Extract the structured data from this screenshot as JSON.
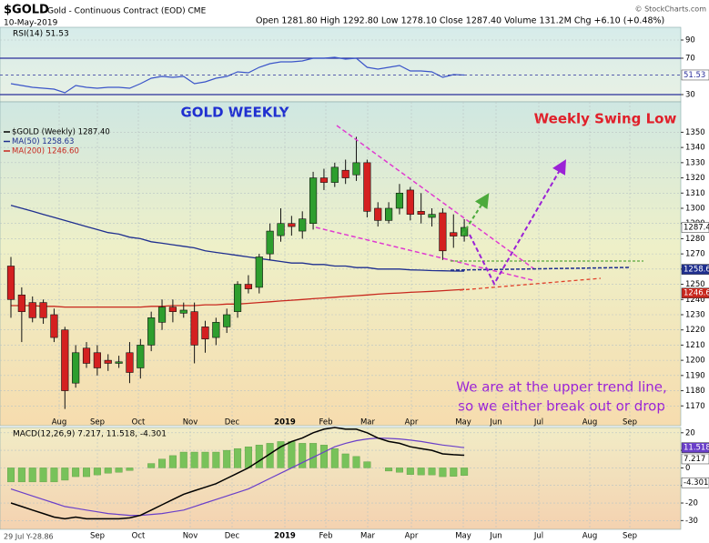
{
  "header": {
    "symbol": "$GOLD",
    "name": "Gold - Continuous Contract (EOD) CME",
    "date": "10-May-2019",
    "source": "© StockCharts.com",
    "quote": "Open 1281.80  High 1292.80  Low 1278.10  Close 1287.40  Volume 131.2M  Chg +6.10 (+0.48%)"
  },
  "annotations": {
    "left": "GOLD WEEKLY",
    "right": "Weekly Swing Low",
    "note_line1": "We are at the upper trend line,",
    "note_line2": "so we either break out or drop"
  },
  "footer": "29 Jul Y-28.86",
  "chart_data": [
    {
      "type": "line",
      "label": "RSI(14) 51.53",
      "series": [
        {
          "name": "RSI(14)",
          "color": "#3b55c9",
          "values": [
            42,
            40,
            38,
            37,
            36,
            32,
            40,
            38,
            37,
            38,
            38,
            37,
            42,
            48,
            50,
            49,
            50,
            42,
            44,
            48,
            50,
            55,
            54,
            60,
            64,
            66,
            66,
            67,
            70,
            70,
            71,
            69,
            70,
            60,
            58,
            60,
            62,
            56,
            56,
            55,
            49,
            52,
            51.53
          ]
        }
      ],
      "overbought": 70,
      "oversold": 30,
      "ylim": [
        22,
        104
      ],
      "yticks": [
        30,
        70,
        90
      ]
    },
    {
      "type": "candlestick",
      "legend": [
        "$GOLD (Weekly) 1287.40",
        "MA(50) 1258.63",
        "MA(200) 1246.60"
      ],
      "up_color": "#2e9e2e",
      "down_color": "#d42020",
      "open": [
        1262,
        1243,
        1238,
        1238,
        1230,
        1220,
        1185,
        1208,
        1205,
        1200,
        1198,
        1205,
        1195,
        1210,
        1225,
        1235,
        1231,
        1232,
        1222,
        1215,
        1222,
        1232,
        1250,
        1248,
        1270,
        1282,
        1290,
        1285,
        1290,
        1320,
        1317,
        1325,
        1322,
        1330,
        1300,
        1292,
        1300,
        1312,
        1298,
        1294,
        1297,
        1284,
        1281.8
      ],
      "high": [
        1268,
        1248,
        1242,
        1240,
        1234,
        1222,
        1210,
        1212,
        1210,
        1204,
        1203,
        1212,
        1214,
        1232,
        1240,
        1240,
        1238,
        1238,
        1226,
        1228,
        1234,
        1252,
        1256,
        1270,
        1290,
        1300,
        1295,
        1298,
        1324,
        1326,
        1330,
        1332,
        1347,
        1332,
        1304,
        1304,
        1316,
        1314,
        1310,
        1300,
        1300,
        1296,
        1292.8
      ],
      "low": [
        1228,
        1212,
        1225,
        1224,
        1212,
        1168,
        1182,
        1195,
        1190,
        1193,
        1195,
        1185,
        1188,
        1206,
        1220,
        1225,
        1228,
        1198,
        1205,
        1210,
        1218,
        1228,
        1244,
        1244,
        1266,
        1278,
        1282,
        1280,
        1286,
        1312,
        1314,
        1316,
        1318,
        1294,
        1288,
        1290,
        1296,
        1292,
        1290,
        1288,
        1266,
        1274,
        1278.1
      ],
      "close": [
        1240,
        1232,
        1228,
        1228,
        1215,
        1180,
        1205,
        1198,
        1195,
        1198,
        1199,
        1192,
        1210,
        1228,
        1235,
        1232,
        1233,
        1210,
        1214,
        1225,
        1230,
        1250,
        1247,
        1268,
        1285,
        1290,
        1288,
        1293,
        1320,
        1317,
        1327,
        1320,
        1330,
        1298,
        1292,
        1300,
        1310,
        1296,
        1296,
        1296,
        1272,
        1281.7,
        1287.4
      ],
      "overlays": [
        {
          "name": "MA(50)",
          "color": "#1f2f8f",
          "values": [
            1302,
            1300,
            1298,
            1296,
            1294,
            1292,
            1290,
            1288,
            1286,
            1284,
            1283,
            1281,
            1280,
            1278,
            1277,
            1276,
            1275,
            1274,
            1272,
            1271,
            1270,
            1269,
            1268,
            1267,
            1266,
            1265,
            1264,
            1264,
            1263,
            1263,
            1262,
            1262,
            1261,
            1261,
            1260,
            1260,
            1260,
            1259.5,
            1259.3,
            1259,
            1258.9,
            1258.7,
            1258.63
          ]
        },
        {
          "name": "MA(200)",
          "color": "#c8281e",
          "values": [
            1236,
            1236,
            1236,
            1235.5,
            1235.5,
            1235,
            1235,
            1235,
            1235,
            1235,
            1235,
            1235,
            1235,
            1235.5,
            1235.5,
            1236,
            1236,
            1236,
            1236.5,
            1236.5,
            1237,
            1237,
            1237.5,
            1238,
            1238.5,
            1239,
            1239.5,
            1240,
            1240.5,
            1241,
            1241.5,
            1242,
            1242.5,
            1243,
            1243.5,
            1244,
            1244.3,
            1244.7,
            1245,
            1245.4,
            1245.8,
            1246.2,
            1246.6
          ]
        }
      ],
      "ylim": [
        1157,
        1370
      ],
      "yticks": [
        1170,
        1180,
        1190,
        1200,
        1210,
        1220,
        1230,
        1240,
        1250,
        1260,
        1270,
        1280,
        1290,
        1300,
        1310,
        1320,
        1330,
        1340,
        1350
      ],
      "x_axis_labels": [
        "Aug",
        "Sep",
        "Oct",
        "Nov",
        "Dec",
        "2019",
        "Feb",
        "Mar",
        "Apr",
        "May",
        "Jun",
        "Jul",
        "Aug",
        "Sep"
      ],
      "grid": true
    },
    {
      "type": "macd",
      "label": "MACD(12,26,9) 7.217, 11.518, -4.301",
      "macd": [
        -20,
        -22,
        -24,
        -26,
        -28,
        -29,
        -28,
        -29,
        -29,
        -29,
        -29,
        -28.5,
        -27,
        -24,
        -21,
        -18,
        -15,
        -13,
        -11,
        -9,
        -6,
        -3,
        0,
        4,
        8,
        12,
        15,
        17,
        20,
        22,
        23,
        22,
        22,
        20,
        17,
        15,
        14,
        12,
        11,
        10,
        8,
        7.5,
        7.217
      ],
      "signal": [
        -12,
        -14,
        -16,
        -18,
        -20,
        -22,
        -23,
        -24,
        -25,
        -26,
        -26.5,
        -27,
        -27,
        -26.5,
        -26,
        -25,
        -24,
        -22,
        -20,
        -18,
        -16,
        -14,
        -12,
        -9,
        -6,
        -3,
        0,
        3,
        6,
        9,
        12,
        14,
        15.5,
        16.5,
        17,
        16.8,
        16.5,
        15.8,
        15,
        14,
        13,
        12.3,
        11.518
      ],
      "histogram": [
        -8,
        -8,
        -8,
        -8,
        -8,
        -7,
        -5,
        -5,
        -4,
        -3,
        -2.5,
        -1.5,
        0,
        2.5,
        5,
        7,
        9,
        9,
        9,
        9,
        10,
        11,
        12,
        13,
        14,
        15,
        15,
        14,
        14,
        13,
        11,
        8,
        6.5,
        3.5,
        0,
        -1.8,
        -2.5,
        -3.8,
        -4,
        -4,
        -5,
        -4.8,
        -4.301
      ],
      "macd_color": "#000000",
      "signal_color": "#6a3fc9",
      "histogram_color": "#78c25a",
      "ylim": [
        -35,
        23
      ],
      "yticks": [
        -30,
        -20,
        -10,
        0,
        10,
        20
      ],
      "x_axis_labels": [
        "Sep",
        "Oct",
        "Nov",
        "Dec",
        "2019",
        "Feb",
        "Mar",
        "Apr",
        "May",
        "Jun",
        "Jul",
        "Aug",
        "Sep"
      ],
      "grid": true
    }
  ]
}
